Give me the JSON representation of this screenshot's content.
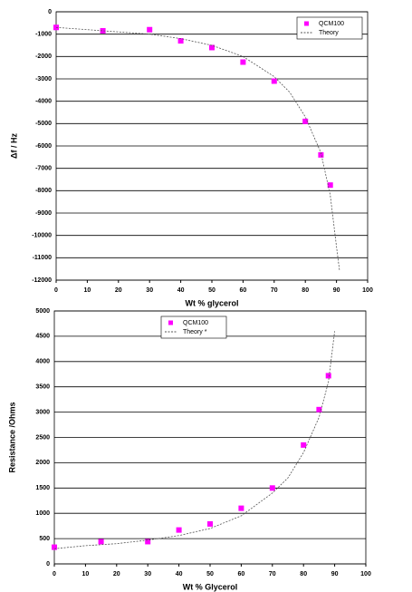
{
  "chart_data": [
    {
      "type": "scatter",
      "xlabel": "Wt % glycerol",
      "ylabel": "Δf / Hz",
      "xlim": [
        0,
        100
      ],
      "ylim": [
        -12000,
        0
      ],
      "xticks": [
        0,
        10,
        20,
        30,
        40,
        50,
        60,
        70,
        80,
        90,
        100
      ],
      "yticks": [
        -12000,
        -11000,
        -10000,
        -9000,
        -8000,
        -7000,
        -6000,
        -5000,
        -4000,
        -3000,
        -2000,
        -1000,
        0
      ],
      "grid": true,
      "legend": "top-right",
      "series": [
        {
          "name": "QCM100",
          "color": "#ff00ff",
          "mode": "markers",
          "x": [
            0,
            15,
            30,
            40,
            50,
            60,
            70,
            80,
            85,
            88
          ],
          "values": [
            -700,
            -850,
            -800,
            -1300,
            -1600,
            -2250,
            -3100,
            -4900,
            -6400,
            -7750
          ]
        },
        {
          "name": "Theory",
          "color": "#555555",
          "mode": "dashed-line",
          "x": [
            0,
            10,
            20,
            30,
            40,
            50,
            60,
            70,
            75,
            80,
            85,
            88,
            90,
            91
          ],
          "values": [
            -700,
            -800,
            -900,
            -1000,
            -1200,
            -1500,
            -2000,
            -2900,
            -3600,
            -4700,
            -6300,
            -8200,
            -10500,
            -11600
          ]
        }
      ]
    },
    {
      "type": "scatter",
      "xlabel": "Wt % Glycerol",
      "ylabel": "Resistance /Ohms",
      "xlim": [
        0,
        100
      ],
      "ylim": [
        0,
        5000
      ],
      "xticks": [
        0,
        10,
        20,
        30,
        40,
        50,
        60,
        70,
        80,
        90,
        100
      ],
      "yticks": [
        0,
        500,
        1000,
        1500,
        2000,
        2500,
        3000,
        3500,
        4000,
        4500,
        5000
      ],
      "grid": true,
      "legend": "top-center",
      "series": [
        {
          "name": "QCM100",
          "color": "#ff00ff",
          "mode": "markers",
          "x": [
            0,
            15,
            30,
            40,
            50,
            60,
            70,
            80,
            85,
            88
          ],
          "values": [
            330,
            440,
            440,
            670,
            790,
            1100,
            1500,
            2350,
            3050,
            3720
          ]
        },
        {
          "name": "Theory *",
          "color": "#555555",
          "mode": "dashed-line",
          "x": [
            0,
            10,
            20,
            30,
            40,
            50,
            60,
            70,
            75,
            80,
            85,
            88,
            90
          ],
          "values": [
            300,
            360,
            400,
            470,
            560,
            700,
            950,
            1400,
            1700,
            2200,
            2900,
            3600,
            4600
          ]
        }
      ]
    }
  ]
}
